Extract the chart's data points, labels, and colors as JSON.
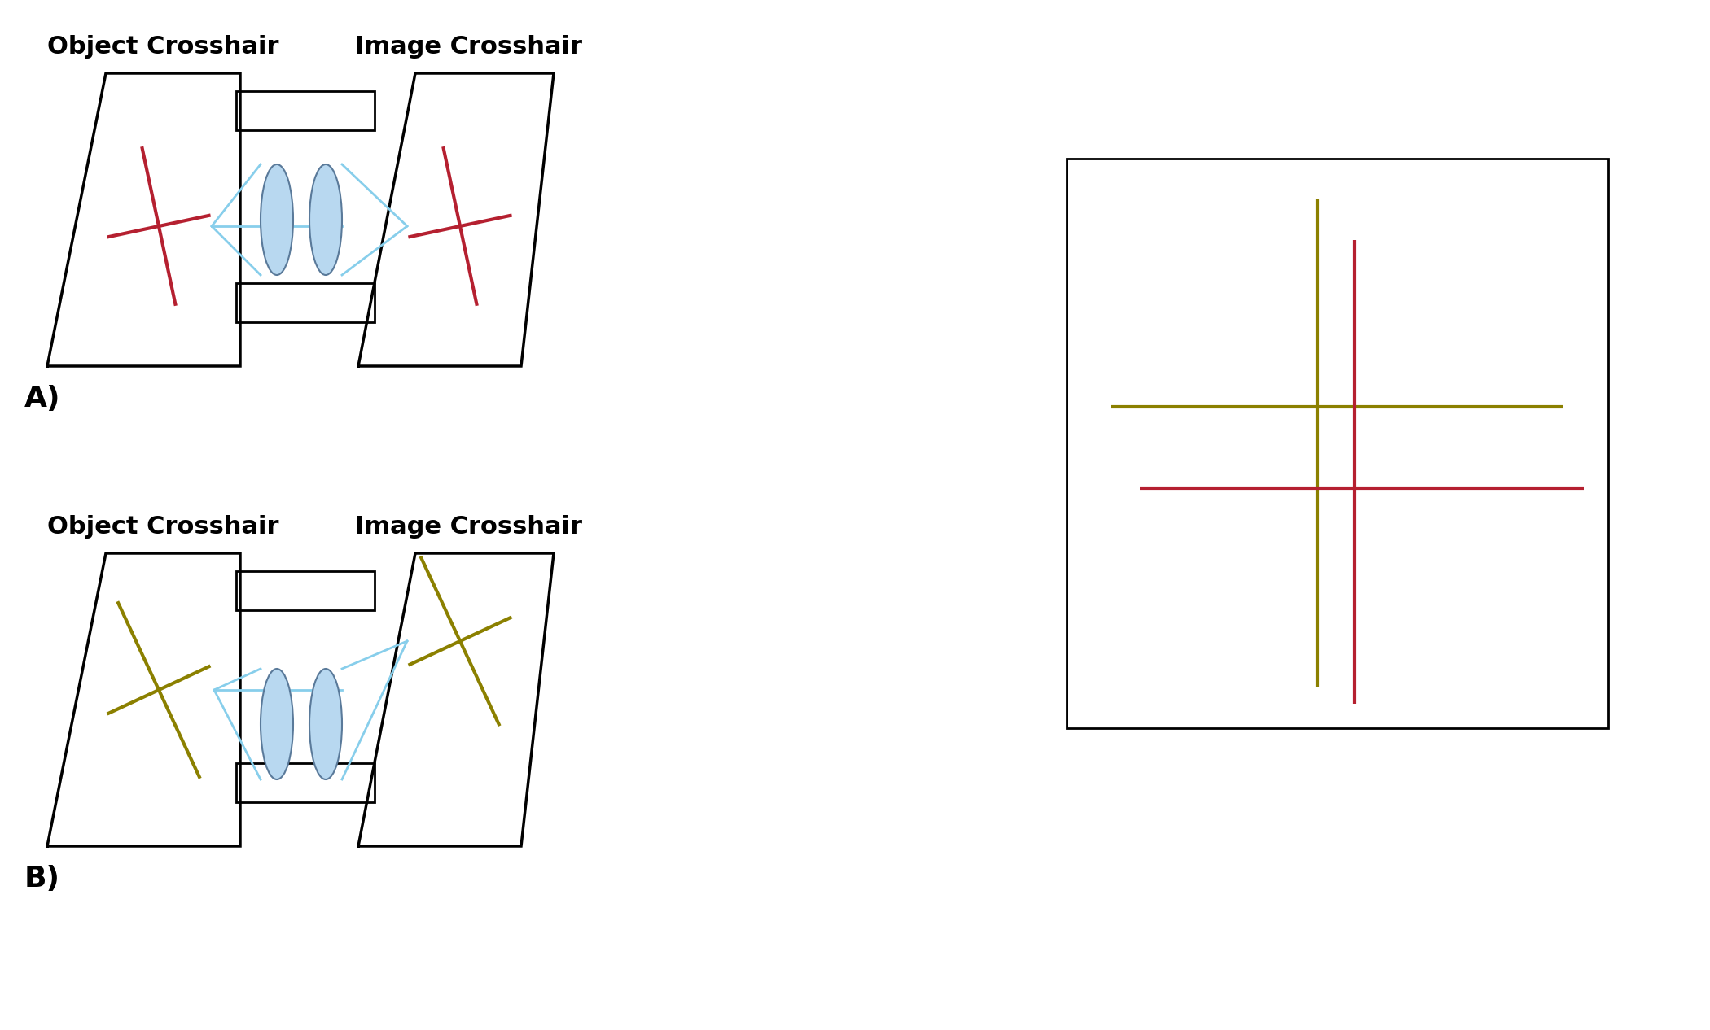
{
  "bg_color": "#ffffff",
  "label_A": "A)",
  "label_B": "B)",
  "title_obj_crosshair": "Object Crosshair",
  "title_img_crosshair": "Image Crosshair",
  "crosshair_red": "#b52030",
  "crosshair_olive": "#8b8000",
  "lens_fill": "#b8d8f0",
  "lens_edge": "#5a7a9a",
  "ray_color": "#87ceeb",
  "barrel_color": "#000000",
  "label_fontsize": 26,
  "title_fontsize": 22,
  "linewidth_crosshair": 3.0,
  "linewidth_barrel": 2.0,
  "linewidth_ray": 2.0,
  "linewidth_trap": 2.5
}
